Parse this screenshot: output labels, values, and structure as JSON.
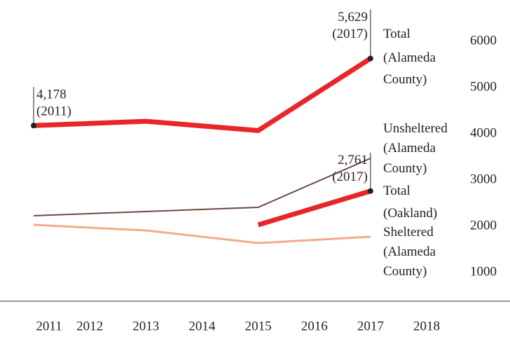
{
  "chart_data": {
    "type": "line",
    "xlim": [
      2011,
      2018
    ],
    "xticks": [
      2011,
      2012,
      2013,
      2014,
      2015,
      2016,
      2017,
      2018
    ],
    "ylim": [
      0,
      6000
    ],
    "yticks": [
      1000,
      2000,
      3000,
      4000,
      5000,
      6000
    ],
    "series": [
      {
        "name": "Total (Alameda County)",
        "color": "#e8262a",
        "width": 7,
        "x": [
          2011,
          2013,
          2015,
          2017
        ],
        "values": [
          4178,
          4270,
          4070,
          5629
        ],
        "value_labels": [
          "4,178",
          null,
          null,
          "5,629"
        ],
        "date_labels": [
          "(2011)",
          null,
          null,
          "(2017)"
        ]
      },
      {
        "name": "Unsheltered (Alameda County)",
        "color": "#6b4a3e",
        "width": 2,
        "x": [
          2011,
          2013,
          2015,
          2017
        ],
        "values": [
          2227,
          2318,
          2409,
          3470
        ]
      },
      {
        "name": "Total (Oakland)",
        "color": "#e8262a",
        "width": 7,
        "x": [
          2015,
          2017
        ],
        "values": [
          2030,
          2761
        ],
        "value_labels": [
          null,
          "2,761"
        ],
        "date_labels": [
          null,
          "(2017)"
        ]
      },
      {
        "name": "Sheltered (Alameda County)",
        "color": "#f4a98a",
        "width": 3,
        "x": [
          2011,
          2013,
          2015,
          2017
        ],
        "values": [
          2030,
          1909,
          1636,
          1773
        ]
      }
    ]
  }
}
